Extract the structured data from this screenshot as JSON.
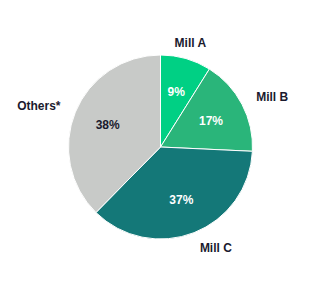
{
  "chart_data": {
    "type": "pie",
    "categories": [
      "Mill A",
      "Mill B",
      "Mill C",
      "Others*"
    ],
    "values": [
      9,
      17,
      37,
      38
    ],
    "value_labels": [
      "9%",
      "17%",
      "37%",
      "38%"
    ],
    "colors": [
      "#00d084",
      "#2ab57a",
      "#147878",
      "#c8cac8"
    ],
    "data_labels": true
  }
}
